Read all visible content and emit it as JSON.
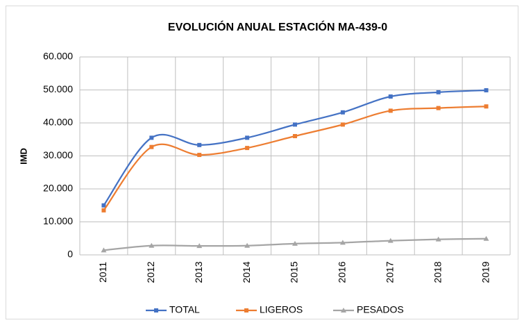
{
  "chart_data": {
    "type": "line",
    "title": "EVOLUCIÓN ANUAL ESTACIÓN MA-439-0",
    "y_label": "IMD",
    "categories": [
      "2011",
      "2012",
      "2013",
      "2014",
      "2015",
      "2016",
      "2017",
      "2018",
      "2019"
    ],
    "series": [
      {
        "name": "TOTAL",
        "color": "#4472c4",
        "marker": "square",
        "values": [
          15000,
          35500,
          33300,
          35500,
          39500,
          43200,
          48000,
          49300,
          49900
        ]
      },
      {
        "name": "LIGEROS",
        "color": "#ed7d31",
        "marker": "square",
        "values": [
          13500,
          32700,
          30300,
          32400,
          36000,
          39500,
          43700,
          44500,
          45000
        ]
      },
      {
        "name": "PESADOS",
        "color": "#a5a5a5",
        "marker": "triangle",
        "values": [
          1400,
          2800,
          2700,
          2800,
          3400,
          3700,
          4300,
          4700,
          4900
        ]
      }
    ],
    "ylim": [
      0,
      60000
    ],
    "yticks": [
      0,
      {
        "value": 10000,
        "label": "10.000"
      },
      {
        "value": 20000,
        "label": "20.000"
      },
      {
        "value": 30000,
        "label": "30.000"
      },
      {
        "value": 40000,
        "label": "40.000"
      },
      {
        "value": 50000,
        "label": "50.000"
      },
      {
        "value": 60000,
        "label": "60.000"
      }
    ],
    "grid": true,
    "smooth": true,
    "legend": "bottom"
  }
}
